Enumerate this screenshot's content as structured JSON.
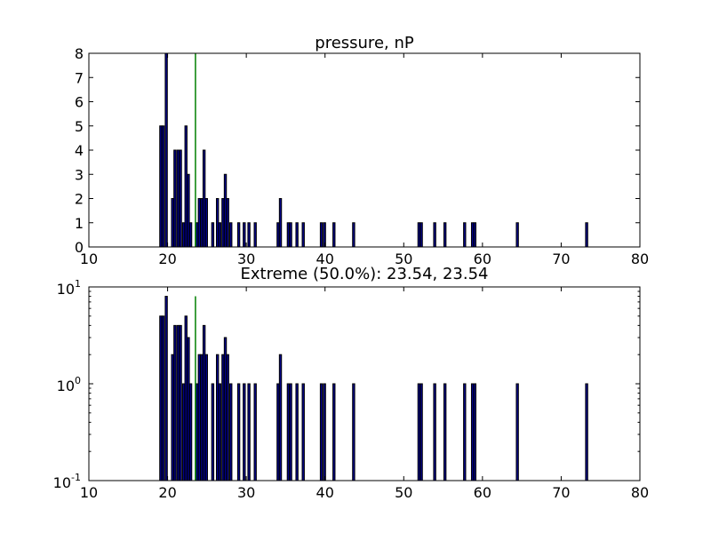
{
  "chart_data": [
    {
      "type": "bar",
      "title": "pressure, nP",
      "xlabel": "",
      "ylabel": "",
      "xlim": [
        10,
        80
      ],
      "ylim": [
        0,
        8
      ],
      "yscale": "linear",
      "x_ticks": [
        "10",
        "20",
        "30",
        "40",
        "50",
        "60",
        "70",
        "80"
      ],
      "y_ticks": [
        "0",
        "1",
        "2",
        "3",
        "4",
        "5",
        "6",
        "7",
        "8"
      ],
      "bar_width": 0.27,
      "bar_color": "#00008b",
      "bar_edge_color": "#000000",
      "marker_line_x": 23.54,
      "marker_line_color": "#008000",
      "marker_line_ymax": 8,
      "bins": [
        {
          "x": 19.0,
          "count": 5
        },
        {
          "x": 19.3,
          "count": 5
        },
        {
          "x": 19.7,
          "count": 8
        },
        {
          "x": 20.5,
          "count": 2
        },
        {
          "x": 20.8,
          "count": 4
        },
        {
          "x": 21.2,
          "count": 4
        },
        {
          "x": 21.5,
          "count": 4
        },
        {
          "x": 21.9,
          "count": 1
        },
        {
          "x": 22.2,
          "count": 5
        },
        {
          "x": 22.5,
          "count": 3
        },
        {
          "x": 22.8,
          "count": 1
        },
        {
          "x": 23.6,
          "count": 1
        },
        {
          "x": 23.9,
          "count": 2
        },
        {
          "x": 24.2,
          "count": 2
        },
        {
          "x": 24.5,
          "count": 4
        },
        {
          "x": 24.8,
          "count": 2
        },
        {
          "x": 25.6,
          "count": 1
        },
        {
          "x": 26.2,
          "count": 2
        },
        {
          "x": 26.5,
          "count": 1
        },
        {
          "x": 26.9,
          "count": 2
        },
        {
          "x": 27.2,
          "count": 3
        },
        {
          "x": 27.5,
          "count": 2
        },
        {
          "x": 27.9,
          "count": 1
        },
        {
          "x": 28.9,
          "count": 1
        },
        {
          "x": 29.6,
          "count": 1
        },
        {
          "x": 30.2,
          "count": 1
        },
        {
          "x": 31.0,
          "count": 1
        },
        {
          "x": 33.9,
          "count": 1
        },
        {
          "x": 34.2,
          "count": 2
        },
        {
          "x": 35.2,
          "count": 1
        },
        {
          "x": 35.5,
          "count": 1
        },
        {
          "x": 36.3,
          "count": 1
        },
        {
          "x": 37.1,
          "count": 1
        },
        {
          "x": 39.4,
          "count": 1
        },
        {
          "x": 39.8,
          "count": 1
        },
        {
          "x": 41.0,
          "count": 1
        },
        {
          "x": 43.5,
          "count": 1
        },
        {
          "x": 51.8,
          "count": 1
        },
        {
          "x": 52.1,
          "count": 1
        },
        {
          "x": 53.8,
          "count": 1
        },
        {
          "x": 55.1,
          "count": 1
        },
        {
          "x": 57.6,
          "count": 1
        },
        {
          "x": 58.6,
          "count": 1
        },
        {
          "x": 58.9,
          "count": 1
        },
        {
          "x": 64.3,
          "count": 1
        },
        {
          "x": 73.1,
          "count": 1
        }
      ]
    },
    {
      "type": "bar",
      "title": "Extreme (50.0%): 23.54, 23.54",
      "xlabel": "",
      "ylabel": "",
      "xlim": [
        10,
        80
      ],
      "ylim": [
        0.1,
        10
      ],
      "yscale": "log",
      "x_ticks": [
        "10",
        "20",
        "30",
        "40",
        "50",
        "60",
        "70",
        "80"
      ],
      "y_ticks": [
        {
          "value": 0.1,
          "base": "10",
          "exp": "-1"
        },
        {
          "value": 1,
          "base": "10",
          "exp": "0"
        },
        {
          "value": 10,
          "base": "10",
          "exp": "1"
        }
      ],
      "bar_width": 0.27,
      "bar_color": "#00008b",
      "bar_edge_color": "#000000",
      "marker_line_x": 23.54,
      "marker_line_color": "#008000",
      "marker_line_ymax": 8,
      "bins": [
        {
          "x": 19.0,
          "count": 5
        },
        {
          "x": 19.3,
          "count": 5
        },
        {
          "x": 19.7,
          "count": 8
        },
        {
          "x": 20.5,
          "count": 2
        },
        {
          "x": 20.8,
          "count": 4
        },
        {
          "x": 21.2,
          "count": 4
        },
        {
          "x": 21.5,
          "count": 4
        },
        {
          "x": 21.9,
          "count": 1
        },
        {
          "x": 22.2,
          "count": 5
        },
        {
          "x": 22.5,
          "count": 3
        },
        {
          "x": 22.8,
          "count": 1
        },
        {
          "x": 23.6,
          "count": 1
        },
        {
          "x": 23.9,
          "count": 2
        },
        {
          "x": 24.2,
          "count": 2
        },
        {
          "x": 24.5,
          "count": 4
        },
        {
          "x": 24.8,
          "count": 2
        },
        {
          "x": 25.6,
          "count": 1
        },
        {
          "x": 26.2,
          "count": 2
        },
        {
          "x": 26.5,
          "count": 1
        },
        {
          "x": 26.9,
          "count": 2
        },
        {
          "x": 27.2,
          "count": 3
        },
        {
          "x": 27.5,
          "count": 2
        },
        {
          "x": 27.9,
          "count": 1
        },
        {
          "x": 28.9,
          "count": 1
        },
        {
          "x": 29.6,
          "count": 1
        },
        {
          "x": 30.2,
          "count": 1
        },
        {
          "x": 31.0,
          "count": 1
        },
        {
          "x": 33.9,
          "count": 1
        },
        {
          "x": 34.2,
          "count": 2
        },
        {
          "x": 35.2,
          "count": 1
        },
        {
          "x": 35.5,
          "count": 1
        },
        {
          "x": 36.3,
          "count": 1
        },
        {
          "x": 37.1,
          "count": 1
        },
        {
          "x": 39.4,
          "count": 1
        },
        {
          "x": 39.8,
          "count": 1
        },
        {
          "x": 41.0,
          "count": 1
        },
        {
          "x": 43.5,
          "count": 1
        },
        {
          "x": 51.8,
          "count": 1
        },
        {
          "x": 52.1,
          "count": 1
        },
        {
          "x": 53.8,
          "count": 1
        },
        {
          "x": 55.1,
          "count": 1
        },
        {
          "x": 57.6,
          "count": 1
        },
        {
          "x": 58.6,
          "count": 1
        },
        {
          "x": 58.9,
          "count": 1
        },
        {
          "x": 64.3,
          "count": 1
        },
        {
          "x": 73.1,
          "count": 1
        }
      ]
    }
  ]
}
